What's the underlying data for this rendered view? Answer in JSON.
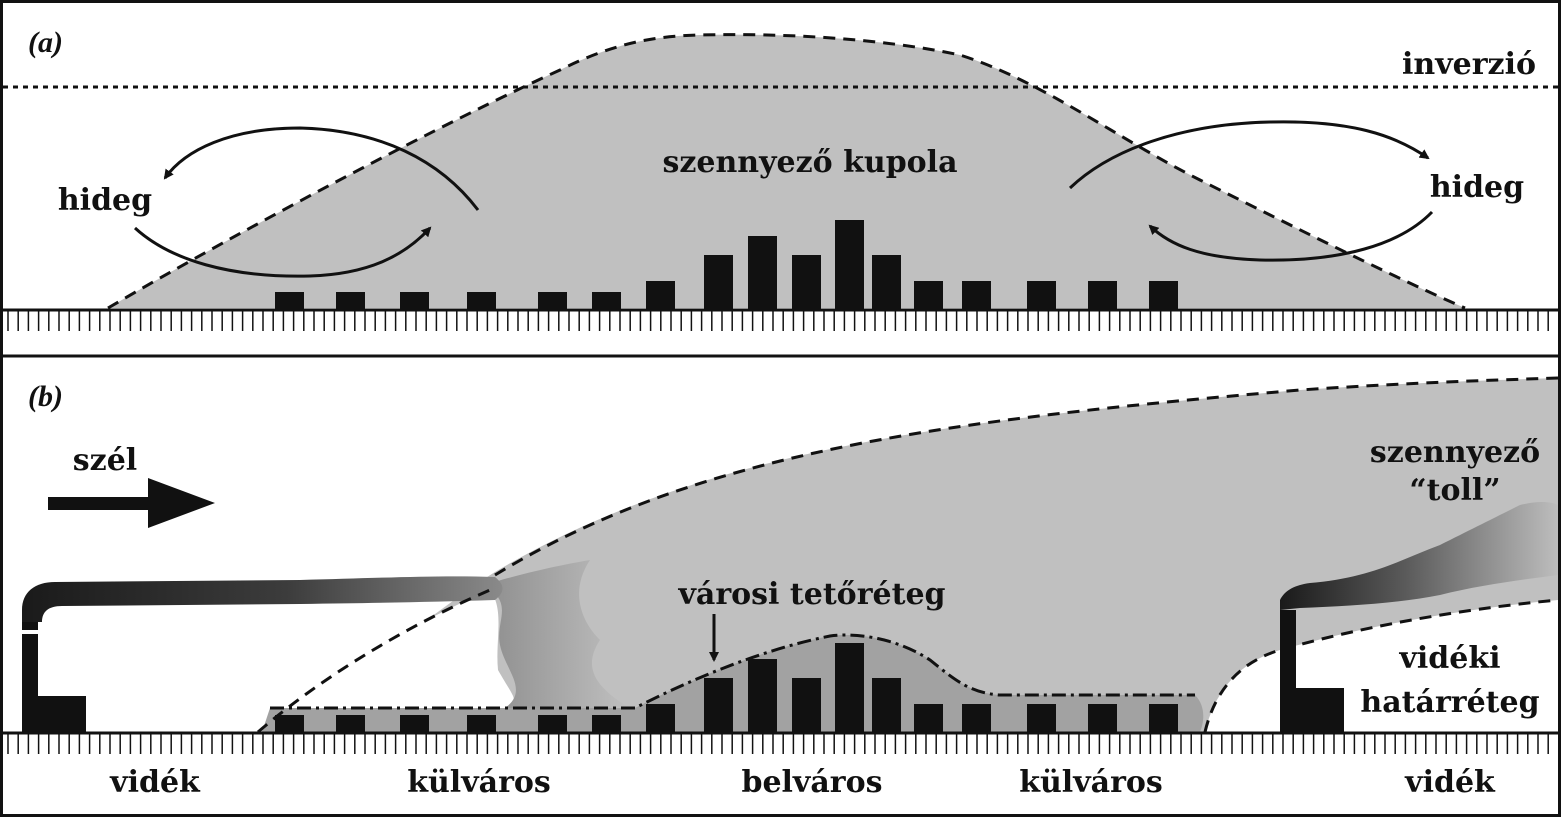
{
  "panel_a": {
    "label": "(a)",
    "inversion_label": "inverzió",
    "dome_label": "szennyező kupola",
    "cold_left": "hideg",
    "cold_right": "hideg"
  },
  "panel_b": {
    "label": "(b)",
    "wind_label": "szél",
    "plume_line1": "szennyező",
    "plume_line2": "“toll”",
    "urban_canopy": "városi tetőréteg",
    "rural_bl_line1": "vidéki",
    "rural_bl_line2": "határréteg"
  },
  "zones": {
    "rural_left": "vidék",
    "suburb_left": "külváros",
    "downtown": "belváros",
    "suburb_right": "külváros",
    "rural_right": "vidék"
  },
  "colors": {
    "dome_fill": "#c0c0c0",
    "canopy_fill": "#a2a2a2",
    "ink": "#111111"
  }
}
